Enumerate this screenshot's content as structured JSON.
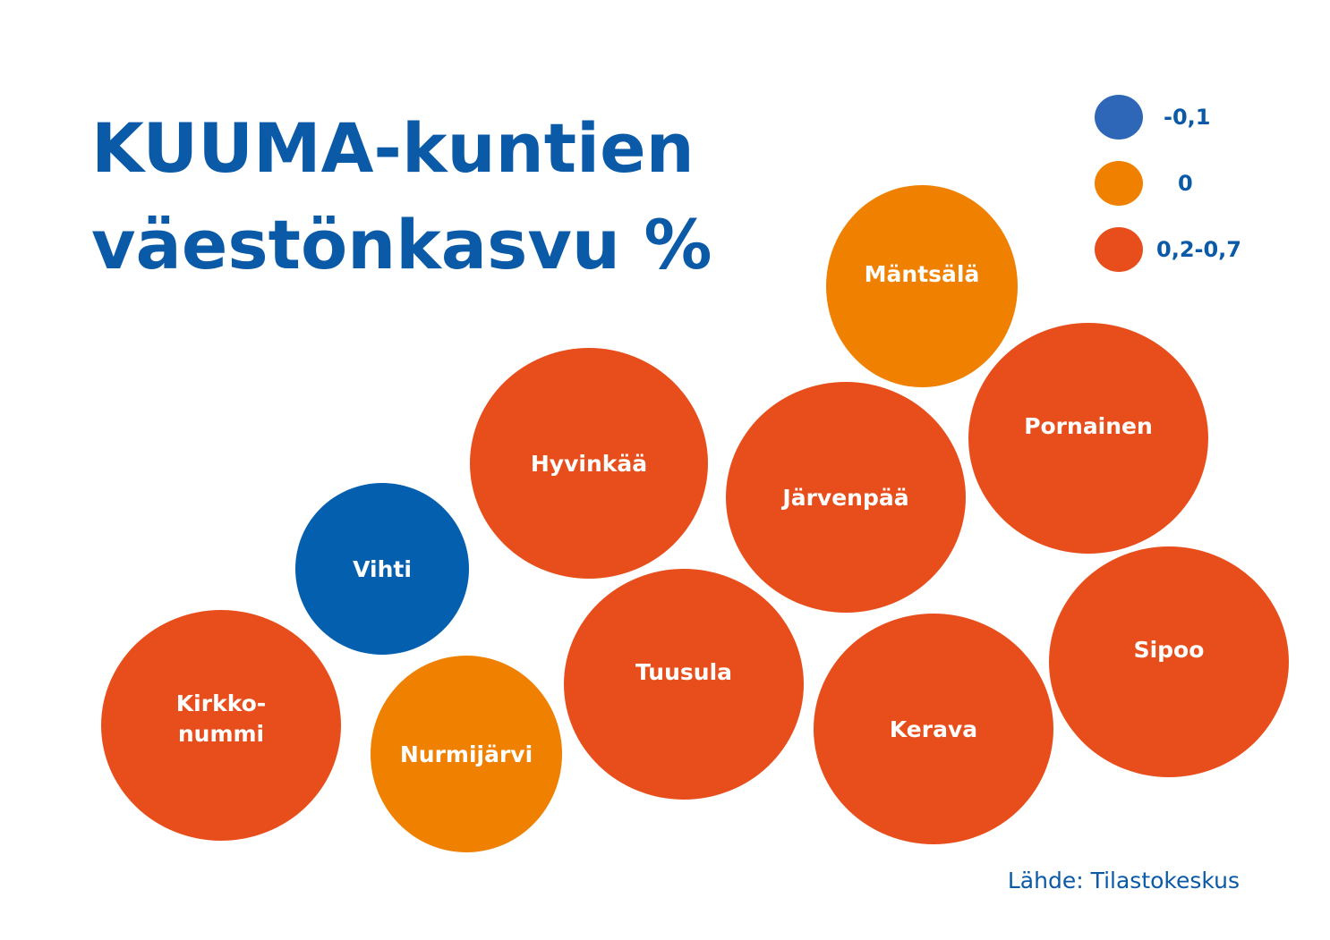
{
  "chart_data": {
    "type": "bubble",
    "title_lines": [
      "KUUMA-kuntien",
      "väestönkasvu %"
    ],
    "source": "Lähde: Tilastokeskus",
    "colors": {
      "title": "#0a5aa8",
      "negative": "#045fae",
      "zero": "#f08000",
      "positive": "#e84e1b",
      "legend_negative": "#2f67b8"
    },
    "legend": [
      {
        "label": "-0,1",
        "category": "negative"
      },
      {
        "label": "0",
        "category": "zero"
      },
      {
        "label": "0,2-0,7",
        "category": "positive"
      }
    ],
    "municipalities": [
      {
        "name": "Mäntsälä",
        "lines": [
          "Mäntsälä"
        ],
        "category": "zero"
      },
      {
        "name": "Hyvinkää",
        "lines": [
          "Hyvinkää"
        ],
        "category": "positive"
      },
      {
        "name": "Järvenpää",
        "lines": [
          "Järvenpää"
        ],
        "category": "positive"
      },
      {
        "name": "Pornainen",
        "lines": [
          "Pornainen"
        ],
        "category": "positive"
      },
      {
        "name": "Vihti",
        "lines": [
          "Vihti"
        ],
        "category": "negative"
      },
      {
        "name": "Tuusula",
        "lines": [
          "Tuusula"
        ],
        "category": "positive"
      },
      {
        "name": "Sipoo",
        "lines": [
          "Sipoo"
        ],
        "category": "positive"
      },
      {
        "name": "Kirkkonummi",
        "lines": [
          "Kirkko-",
          "nummi"
        ],
        "category": "positive"
      },
      {
        "name": "Nurmijärvi",
        "lines": [
          "Nurmijärvi"
        ],
        "category": "zero"
      },
      {
        "name": "Kerava",
        "lines": [
          "Kerava"
        ],
        "category": "positive"
      }
    ]
  }
}
